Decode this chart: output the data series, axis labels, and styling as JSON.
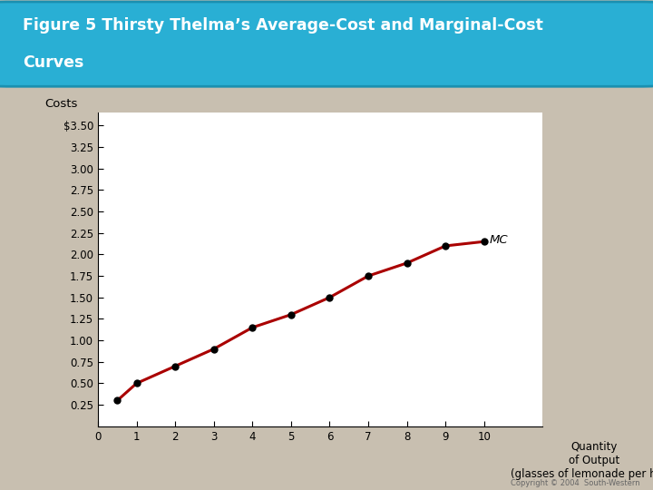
{
  "title_line1": "Figure 5 Thirsty Thelma’s Average-Cost and Marginal-Cost",
  "title_line2": "Curves",
  "bg_color": "#c8bfb0",
  "header_color": "#29afd4",
  "header_edge_color": "#1a90b0",
  "plot_bg": "#ffffff",
  "costs_label": "Costs",
  "xlabel_text": "Quantity\nof Output\n(glasses of lemonade per hour)",
  "copyright": "Copyright © 2004  South-Western",
  "x_data": [
    0.5,
    1,
    2,
    3,
    4,
    5,
    6,
    7,
    8,
    9,
    10
  ],
  "y_mc": [
    0.3,
    0.5,
    0.7,
    0.9,
    1.15,
    1.3,
    1.5,
    1.75,
    1.9,
    2.1,
    2.15
  ],
  "mc_label": "MC",
  "line_color": "#aa0000",
  "dot_color": "#000000",
  "yticks": [
    0.25,
    0.5,
    0.75,
    1.0,
    1.25,
    1.5,
    1.75,
    2.0,
    2.25,
    2.5,
    2.75,
    3.0,
    3.25,
    3.5
  ],
  "ytick_labels": [
    "0.25",
    "0.50",
    "0.75",
    "1.00",
    "1.25",
    "1.50",
    "1.75",
    "2.00",
    "2.25",
    "2.50",
    "2.75",
    "3.00",
    "3.25",
    "$3.50"
  ],
  "xticks": [
    0,
    1,
    2,
    3,
    4,
    5,
    6,
    7,
    8,
    9,
    10
  ],
  "xtick_labels": [
    "0",
    "1",
    "2",
    "3",
    "4",
    "5",
    "6",
    "7",
    "8",
    "9",
    "10"
  ],
  "ylim": [
    0,
    3.65
  ],
  "xlim": [
    0,
    11.5
  ]
}
